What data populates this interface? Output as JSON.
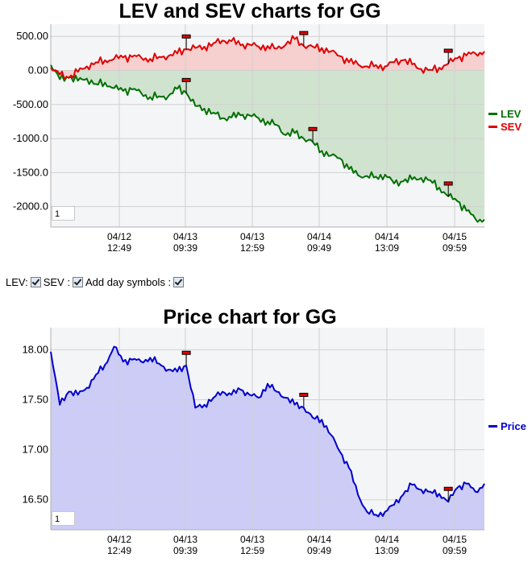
{
  "lev_sev": {
    "title": "LEV and SEV charts for GG",
    "zoom_value": "1"
  },
  "controls": {
    "lev_label": "LEV:",
    "sev_label": "SEV :",
    "day_symbols_label": "Add day symbols :"
  },
  "price": {
    "title": "Price chart for GG",
    "zoom_value": "1"
  },
  "colors": {
    "lev": "#007000",
    "sev": "#e00000",
    "price": "#0000cc",
    "lev_fill": "#cfe3cf",
    "sev_fill": "#f6cfcf",
    "price_fill": "#ccccf6",
    "grid": "#d0d0d0"
  },
  "chart_data": [
    {
      "type": "line",
      "title": "LEV and SEV charts for GG",
      "x_ticks": [
        {
          "date": "04/12",
          "time": "12:49"
        },
        {
          "date": "04/13",
          "time": "09:39"
        },
        {
          "date": "04/13",
          "time": "12:59"
        },
        {
          "date": "04/14",
          "time": "09:49"
        },
        {
          "date": "04/14",
          "time": "13:09"
        },
        {
          "date": "04/15",
          "time": "09:59"
        }
      ],
      "y_ticks": [
        "500.00",
        "0.00",
        "-500.00",
        "-1000.0",
        "-1500.0",
        "-2000.0"
      ],
      "y_tick_values": [
        500,
        0,
        -500,
        -1000,
        -1500,
        -2000
      ],
      "ylim": [
        -2300,
        680
      ],
      "legend": [
        "LEV",
        "SEV"
      ],
      "legend_position": "right",
      "series": [
        {
          "name": "LEV",
          "values": [
            80,
            -130,
            -100,
            -150,
            -120,
            -200,
            -180,
            -260,
            -300,
            -280,
            -330,
            -390,
            -380,
            -380,
            -270,
            -330,
            -520,
            -560,
            -620,
            -700,
            -690,
            -660,
            -660,
            -700,
            -750,
            -800,
            -950,
            -920,
            -1000,
            -1050,
            -1180,
            -1250,
            -1290,
            -1450,
            -1540,
            -1550,
            -1560,
            -1530,
            -1660,
            -1630,
            -1600,
            -1580,
            -1610,
            -1720,
            -1850,
            -1920,
            -2060,
            -2180,
            -2190
          ]
        },
        {
          "name": "SEV",
          "values": [
            40,
            -60,
            -110,
            -20,
            60,
            120,
            150,
            170,
            190,
            200,
            190,
            170,
            200,
            210,
            250,
            310,
            330,
            350,
            400,
            440,
            430,
            370,
            380,
            350,
            360,
            320,
            380,
            460,
            360,
            350,
            330,
            280,
            210,
            120,
            90,
            60,
            80,
            60,
            120,
            150,
            90,
            20,
            10,
            40,
            100,
            180,
            220,
            250,
            280
          ]
        }
      ],
      "day_markers": [
        {
          "series": "SEV",
          "x_index": 15
        },
        {
          "series": "SEV",
          "x_index": 28
        },
        {
          "series": "SEV",
          "x_index": 44
        },
        {
          "series": "LEV",
          "x_index": 15
        },
        {
          "series": "LEV",
          "x_index": 29
        },
        {
          "series": "LEV",
          "x_index": 44
        }
      ]
    },
    {
      "type": "area",
      "title": "Price chart for GG",
      "x_ticks": [
        {
          "date": "04/12",
          "time": "12:49"
        },
        {
          "date": "04/13",
          "time": "09:39"
        },
        {
          "date": "04/13",
          "time": "12:59"
        },
        {
          "date": "04/14",
          "time": "09:49"
        },
        {
          "date": "04/14",
          "time": "13:09"
        },
        {
          "date": "04/15",
          "time": "09:59"
        }
      ],
      "y_ticks": [
        "18.00",
        "17.50",
        "17.00",
        "16.50"
      ],
      "y_tick_values": [
        18.0,
        17.5,
        17.0,
        16.5
      ],
      "ylim": [
        16.2,
        18.22
      ],
      "legend": [
        "Price"
      ],
      "legend_position": "right",
      "series": [
        {
          "name": "Price",
          "values": [
            17.98,
            17.45,
            17.58,
            17.55,
            17.62,
            17.75,
            17.85,
            18.03,
            17.88,
            17.9,
            17.88,
            17.92,
            17.86,
            17.8,
            17.78,
            17.84,
            17.42,
            17.45,
            17.52,
            17.58,
            17.55,
            17.6,
            17.55,
            17.52,
            17.66,
            17.58,
            17.52,
            17.45,
            17.42,
            17.32,
            17.3,
            17.15,
            16.98,
            16.82,
            16.55,
            16.38,
            16.35,
            16.38,
            16.45,
            16.55,
            16.65,
            16.6,
            16.58,
            16.56,
            16.48,
            16.62,
            16.66,
            16.58,
            16.66
          ]
        }
      ],
      "day_markers": [
        {
          "series": "Price",
          "x_index": 15
        },
        {
          "series": "Price",
          "x_index": 28
        },
        {
          "series": "Price",
          "x_index": 44
        }
      ]
    }
  ]
}
